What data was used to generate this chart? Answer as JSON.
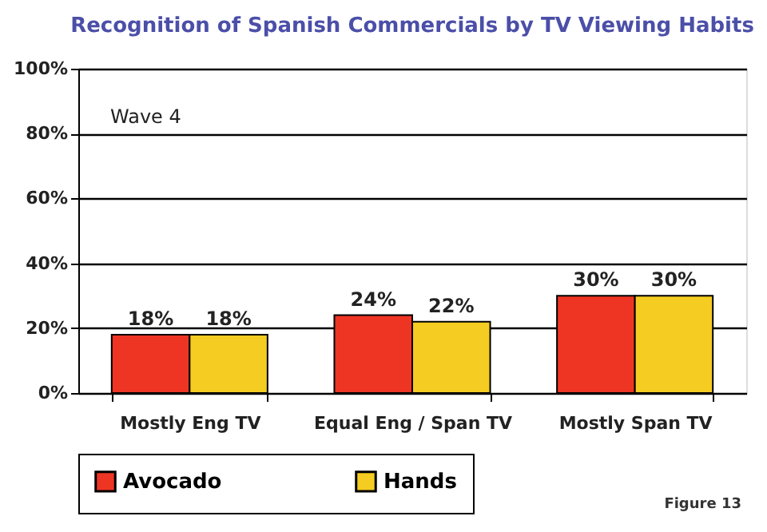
{
  "chart_data": {
    "type": "bar",
    "title": "Recognition of Spanish Commercials by TV Viewing Habits",
    "categories": [
      "Mostly Eng TV",
      "Equal Eng / Span TV",
      "Mostly Span TV"
    ],
    "series": [
      {
        "name": "Avocado",
        "color": "#ee3524",
        "values": [
          18,
          24,
          30
        ],
        "value_labels": [
          "18%",
          "24%",
          "30%"
        ]
      },
      {
        "name": "Hands",
        "color": "#f5cc21",
        "values": [
          18,
          22,
          30
        ],
        "value_labels": [
          "18%",
          "22%",
          "30%"
        ]
      }
    ],
    "ylim": [
      0,
      100
    ],
    "yticks": [
      {
        "value": 0,
        "label": "0%"
      },
      {
        "value": 20,
        "label": "20%"
      },
      {
        "value": 40,
        "label": "40%"
      },
      {
        "value": 60,
        "label": "60%"
      },
      {
        "value": 80,
        "label": "80%"
      },
      {
        "value": 100,
        "label": "100%"
      }
    ],
    "grid": "y",
    "legend": "bottom",
    "annotations": [
      "Wave 4",
      "Figure 13"
    ]
  }
}
